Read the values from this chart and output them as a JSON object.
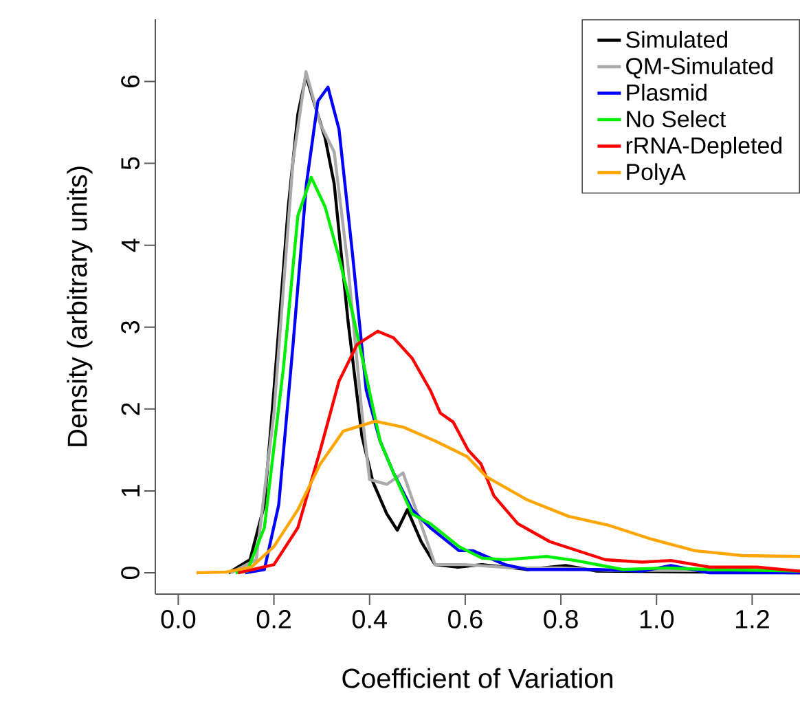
{
  "chart_data": {
    "type": "line",
    "xlabel": "Coefficient of Variation",
    "ylabel": "Density (arbitrary units)",
    "xlim": [
      -0.048,
      1.3
    ],
    "ylim": [
      -0.26,
      6.76
    ],
    "xticks": [
      {
        "value": 0,
        "label": "0.0"
      },
      0.2,
      0.4,
      0.6,
      0.8,
      {
        "value": 1,
        "label": "1.0"
      },
      1.2
    ],
    "yticks": [
      0,
      1,
      2,
      3,
      4,
      5,
      6
    ],
    "legend": "top right",
    "grid": false,
    "marker": "none",
    "line_style": "solid",
    "series": [
      {
        "name": "Simulated",
        "color": "#000000",
        "x": [
          0.105,
          0.15,
          0.18,
          0.2,
          0.23,
          0.25,
          0.267,
          0.283,
          0.307,
          0.326,
          0.355,
          0.384,
          0.407,
          0.436,
          0.458,
          0.479,
          0.508,
          0.537,
          0.585,
          0.635,
          0.73,
          0.81,
          0.875,
          1.3
        ],
        "values": [
          0,
          0.16,
          0.83,
          2.23,
          4.47,
          5.6,
          6.07,
          5.76,
          5.31,
          4.75,
          3.07,
          1.67,
          1.11,
          0.72,
          0.52,
          0.77,
          0.38,
          0.1,
          0.07,
          0.1,
          0.04,
          0.09,
          0.02,
          0
        ]
      },
      {
        "name": "QM-Simulated",
        "color": "#aaaaaa",
        "x": [
          0.11,
          0.163,
          0.2,
          0.24,
          0.267,
          0.297,
          0.326,
          0.355,
          0.384,
          0.4,
          0.436,
          0.47,
          0.5,
          0.537,
          0.6,
          0.7,
          0.8,
          0.9,
          1.0,
          1.3
        ],
        "values": [
          0,
          0.16,
          1.95,
          5.03,
          6.12,
          5.48,
          5.14,
          3.74,
          1.95,
          1.14,
          1.08,
          1.22,
          0.72,
          0.1,
          0.1,
          0.06,
          0.06,
          0.03,
          0.03,
          0.02
        ]
      },
      {
        "name": "Plasmid",
        "color": "#0000ff",
        "x": [
          0.14,
          0.18,
          0.21,
          0.24,
          0.268,
          0.292,
          0.313,
          0.336,
          0.364,
          0.393,
          0.422,
          0.45,
          0.489,
          0.527,
          0.587,
          0.616,
          0.683,
          0.73,
          0.875,
          0.97,
          1.03,
          1.11,
          1.3
        ],
        "values": [
          0,
          0.04,
          0.83,
          2.79,
          4.75,
          5.76,
          5.93,
          5.42,
          3.91,
          2.23,
          1.61,
          1.22,
          0.77,
          0.55,
          0.27,
          0.27,
          0.1,
          0.04,
          0.04,
          0.02,
          0.09,
          0,
          0
        ]
      },
      {
        "name": "No Select",
        "color": "#00ee00",
        "x": [
          0.12,
          0.144,
          0.18,
          0.22,
          0.25,
          0.278,
          0.307,
          0.336,
          0.364,
          0.393,
          0.422,
          0.45,
          0.489,
          0.527,
          0.587,
          0.635,
          0.683,
          0.77,
          0.83,
          0.93,
          1.02,
          1.11,
          1.3
        ],
        "values": [
          0,
          0.02,
          0.55,
          2.51,
          4.36,
          4.83,
          4.47,
          3.85,
          3.18,
          2.4,
          1.61,
          1.22,
          0.72,
          0.6,
          0.32,
          0.18,
          0.16,
          0.2,
          0.15,
          0.04,
          0.06,
          0.04,
          0.02
        ]
      },
      {
        "name": "rRNA-Depleted",
        "color": "#ff0000",
        "x": [
          0.125,
          0.2,
          0.25,
          0.297,
          0.336,
          0.374,
          0.417,
          0.45,
          0.489,
          0.527,
          0.548,
          0.575,
          0.606,
          0.633,
          0.66,
          0.71,
          0.777,
          0.835,
          0.893,
          0.97,
          1.03,
          1.11,
          1.21,
          1.3
        ],
        "values": [
          0,
          0.1,
          0.55,
          1.5,
          2.34,
          2.79,
          2.95,
          2.87,
          2.62,
          2.23,
          1.95,
          1.84,
          1.5,
          1.33,
          0.94,
          0.6,
          0.38,
          0.27,
          0.16,
          0.13,
          0.15,
          0.07,
          0.07,
          0.02
        ]
      },
      {
        "name": "PolyA",
        "color": "#ffa500",
        "x": [
          0.038,
          0.1,
          0.153,
          0.2,
          0.25,
          0.297,
          0.345,
          0.412,
          0.47,
          0.537,
          0.604,
          0.645,
          0.73,
          0.816,
          0.9,
          0.99,
          1.08,
          1.18,
          1.3
        ],
        "values": [
          0,
          0.01,
          0.07,
          0.32,
          0.77,
          1.33,
          1.73,
          1.85,
          1.78,
          1.61,
          1.42,
          1.17,
          0.89,
          0.69,
          0.58,
          0.41,
          0.27,
          0.21,
          0.2
        ]
      }
    ]
  }
}
